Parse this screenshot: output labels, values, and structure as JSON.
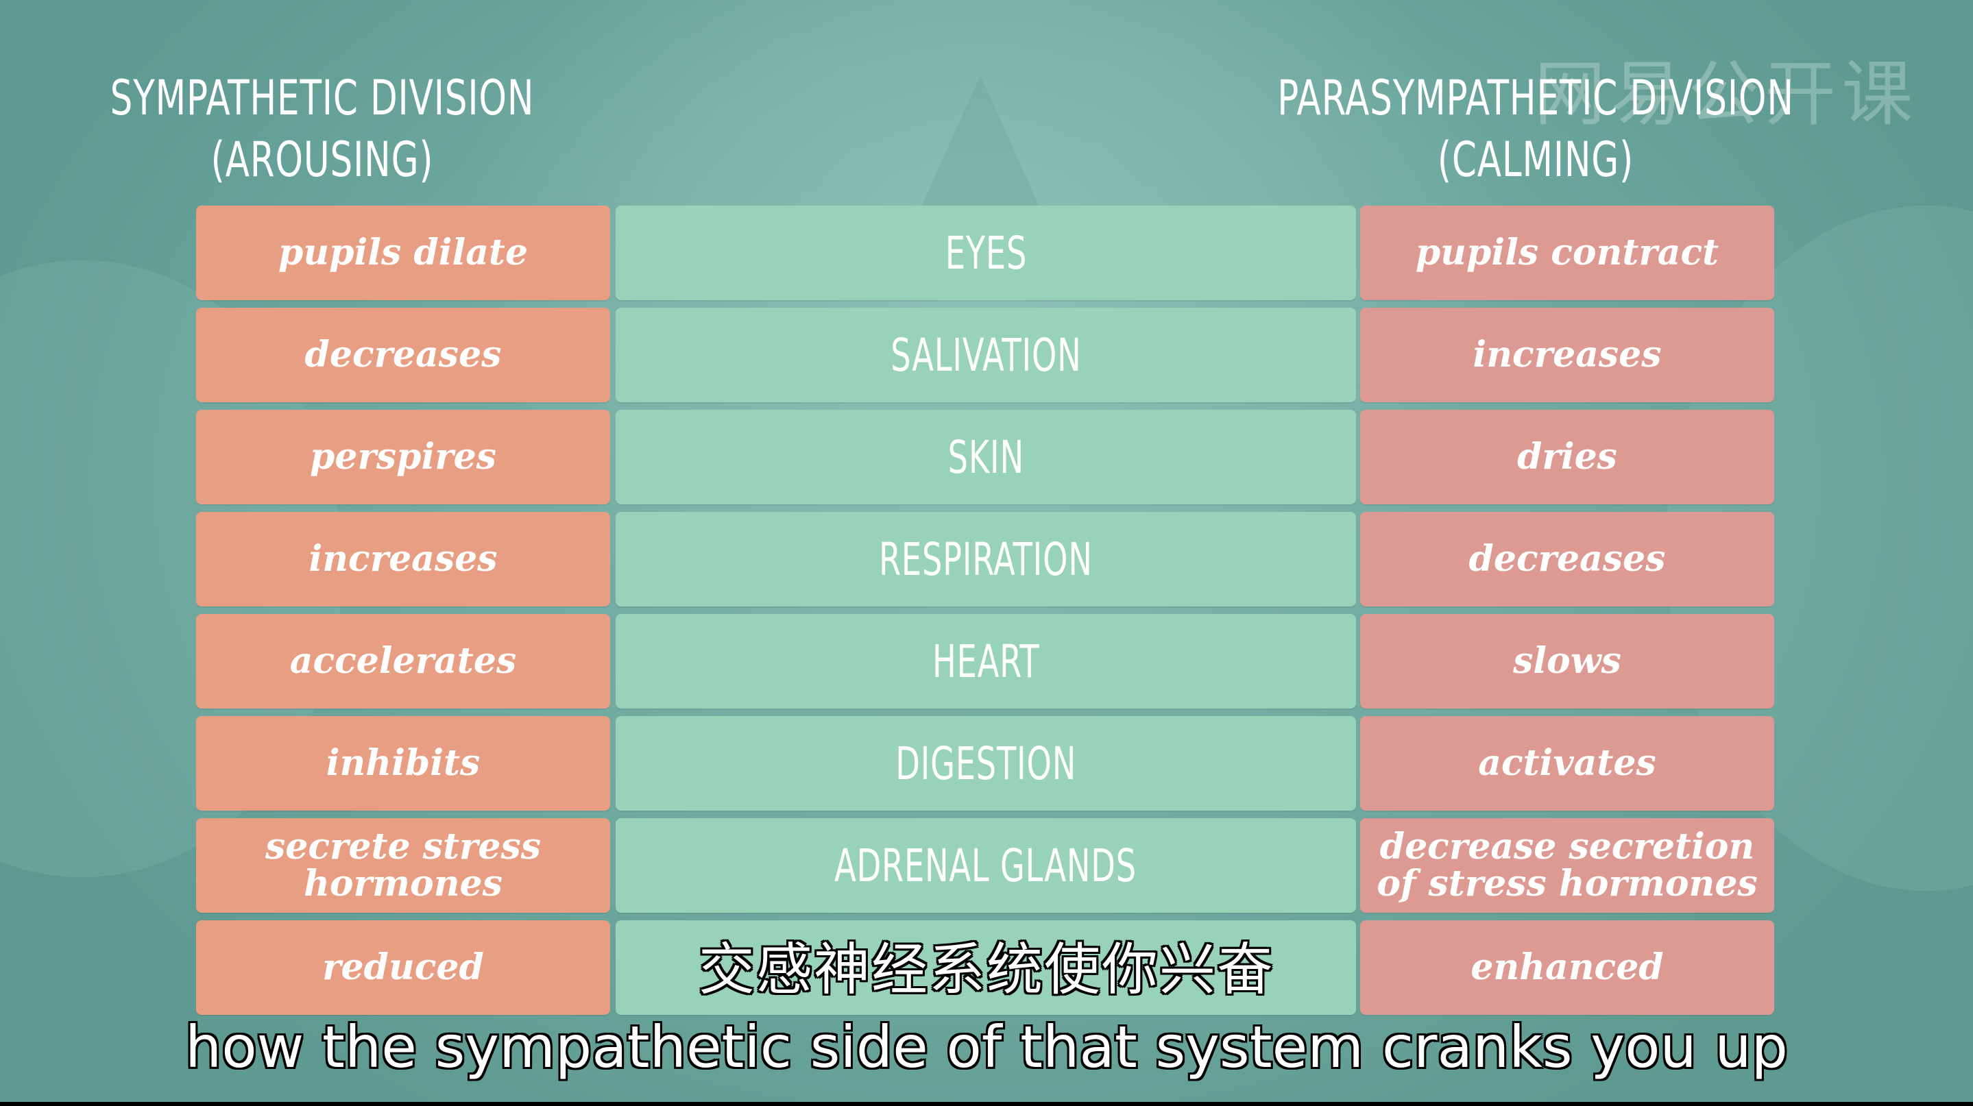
{
  "watermark": "网易公开课",
  "headings": {
    "left": [
      "SYMPATHETIC DIVISION",
      "(AROUSING)"
    ],
    "right": [
      "PARASYMPATHETIC DIVISION",
      "(CALMING)"
    ]
  },
  "rows": [
    {
      "sympathetic": "pupils dilate",
      "organ": "EYES",
      "parasympathetic": "pupils contract"
    },
    {
      "sympathetic": "decreases",
      "organ": "SALIVATION",
      "parasympathetic": "increases"
    },
    {
      "sympathetic": "perspires",
      "organ": "SKIN",
      "parasympathetic": "dries"
    },
    {
      "sympathetic": "increases",
      "organ": "RESPIRATION",
      "parasympathetic": "decreases"
    },
    {
      "sympathetic": "accelerates",
      "organ": "HEART",
      "parasympathetic": "slows"
    },
    {
      "sympathetic": "inhibits",
      "organ": "DIGESTION",
      "parasympathetic": "activates"
    },
    {
      "sympathetic": "secrete stress\nhormones",
      "organ": "ADRENAL GLANDS",
      "parasympathetic": "decrease secretion\nof stress hormones"
    },
    {
      "sympathetic": "reduced",
      "organ": "",
      "parasympathetic": "enhanced"
    }
  ],
  "subtitles": {
    "chinese": "交感神经系统使你兴奋",
    "english": "how the sympathetic side of that system cranks you up"
  },
  "colors": {
    "sympathetic": "#e89e82",
    "organ": "#98d3b9",
    "parasympathetic": "#dc9a93",
    "background": "#6fa9a0"
  }
}
